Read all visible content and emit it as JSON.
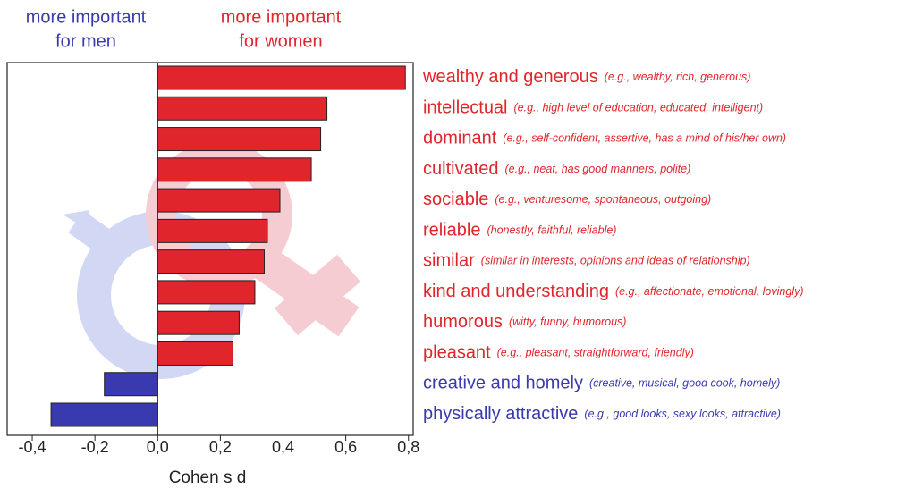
{
  "chart_data": {
    "type": "barh",
    "header_left": [
      "more important",
      "for men"
    ],
    "header_right": [
      "more important",
      "for women"
    ],
    "header_left_color": "#3a3ab0",
    "header_right_color": "#e0262c",
    "xlabel": "Cohen s d",
    "categories": [
      "wealthy and generous",
      "intellectual",
      "dominant",
      "cultivated",
      "sociable",
      "reliable",
      "similar",
      "kind and understanding",
      "humorous",
      "pleasant",
      "creative and homely",
      "physically attractive"
    ],
    "descriptions": [
      "(e.g., wealthy, rich, generous)",
      "(e.g., high level of education, educated, intelligent)",
      "(e.g., self-confident, assertive, has a mind of his/her own)",
      "(e.g., neat, has good manners, polite)",
      "(e.g., venturesome, spontaneous, outgoing)",
      "(honestly, faithful, reliable)",
      "(similar in interests, opinions and ideas of relationship)",
      "(e.g., affectionate, emotional, lovingly)",
      "(witty, funny, humorous)",
      "(e.g., pleasant, straightforward, friendly)",
      "(creative, musical, good cook, homely)",
      "(e.g., good looks, sexy looks, attractive)"
    ],
    "values": [
      0.79,
      0.54,
      0.52,
      0.49,
      0.39,
      0.35,
      0.34,
      0.31,
      0.26,
      0.24,
      -0.17,
      -0.34
    ],
    "colors": [
      "#e0262c",
      "#e0262c",
      "#e0262c",
      "#e0262c",
      "#e0262c",
      "#e0262c",
      "#e0262c",
      "#e0262c",
      "#e0262c",
      "#e0262c",
      "#3a3ab0",
      "#3a3ab0"
    ],
    "xlim": [
      -0.48,
      0.815
    ],
    "xticks": [
      {
        "value": -0.4,
        "label": "-0,4"
      },
      {
        "value": -0.2,
        "label": "-0,2"
      },
      {
        "value": 0,
        "label": "0,0"
      },
      {
        "value": 0.2,
        "label": "0,2"
      },
      {
        "value": 0.4,
        "label": "0,4"
      },
      {
        "value": 0.6,
        "label": "0,6"
      },
      {
        "value": 0.8,
        "label": "0,8"
      }
    ]
  }
}
